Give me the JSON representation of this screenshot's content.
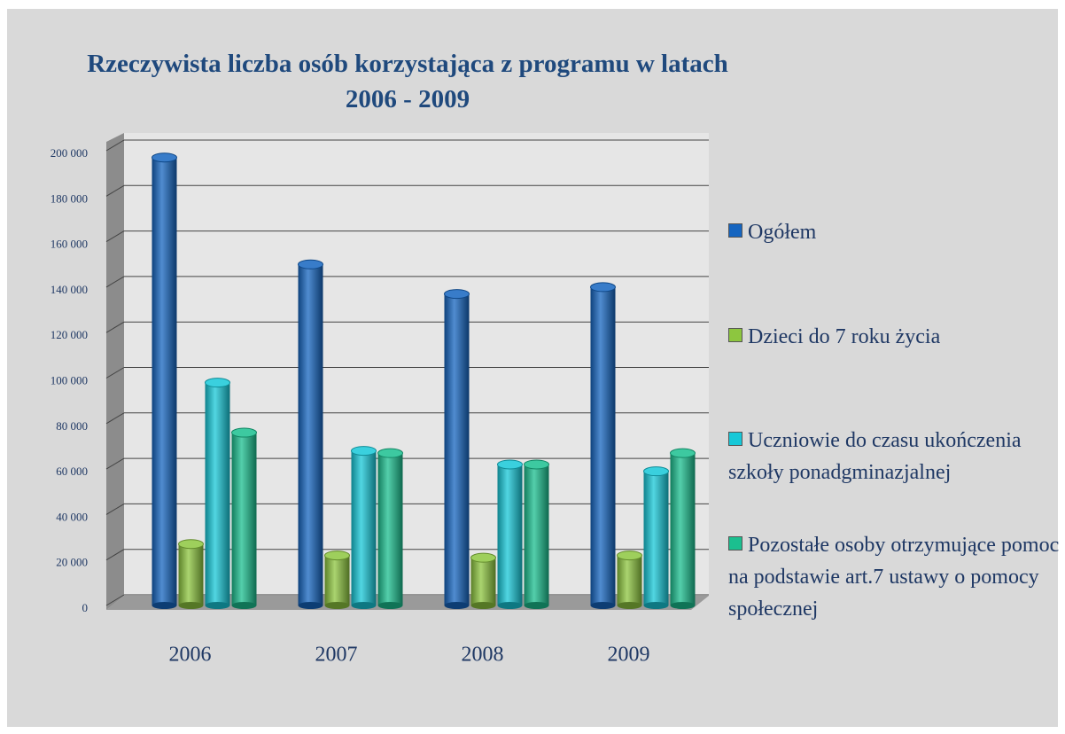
{
  "chart_data": {
    "type": "bar3d",
    "title": "Rzeczywista liczba osób korzystająca z programu w latach 2006 - 2009",
    "categories": [
      "2006",
      "2007",
      "2008",
      "2009"
    ],
    "series": [
      {
        "name": "Ogółem",
        "color": "#1565c0",
        "values": [
          197000,
          150000,
          137000,
          140000
        ]
      },
      {
        "name": "Dzieci do 7 roku życia",
        "color": "#8dc63f",
        "values": [
          27000,
          22000,
          21000,
          22000
        ]
      },
      {
        "name": "Uczniowie do czasu ukończenia szkoły ponadgminazjalnej",
        "color": "#17c8d8",
        "values": [
          98000,
          68000,
          62000,
          59000
        ]
      },
      {
        "name": "Pozostałe osoby otrzymujące pomoc na podstawie art.7 ustawy o pomocy społecznej",
        "color": "#1bbf8f",
        "values": [
          76000,
          67000,
          62000,
          67000
        ]
      }
    ],
    "ylim": [
      0,
      200000
    ],
    "yticks": [
      0,
      {
        "value": 20000,
        "label": "20 000"
      },
      {
        "value": 40000,
        "label": "40 000"
      },
      {
        "value": 60000,
        "label": "60 000"
      },
      {
        "value": 80000,
        "label": "80 000"
      },
      {
        "value": 100000,
        "label": "100 000"
      },
      {
        "value": 120000,
        "label": "120 000"
      },
      {
        "value": 140000,
        "label": "140 000"
      },
      {
        "value": 160000,
        "label": "160 000"
      },
      {
        "value": 180000,
        "label": "180 000"
      },
      {
        "value": 200000,
        "label": "200 000"
      }
    ],
    "grid": true
  }
}
